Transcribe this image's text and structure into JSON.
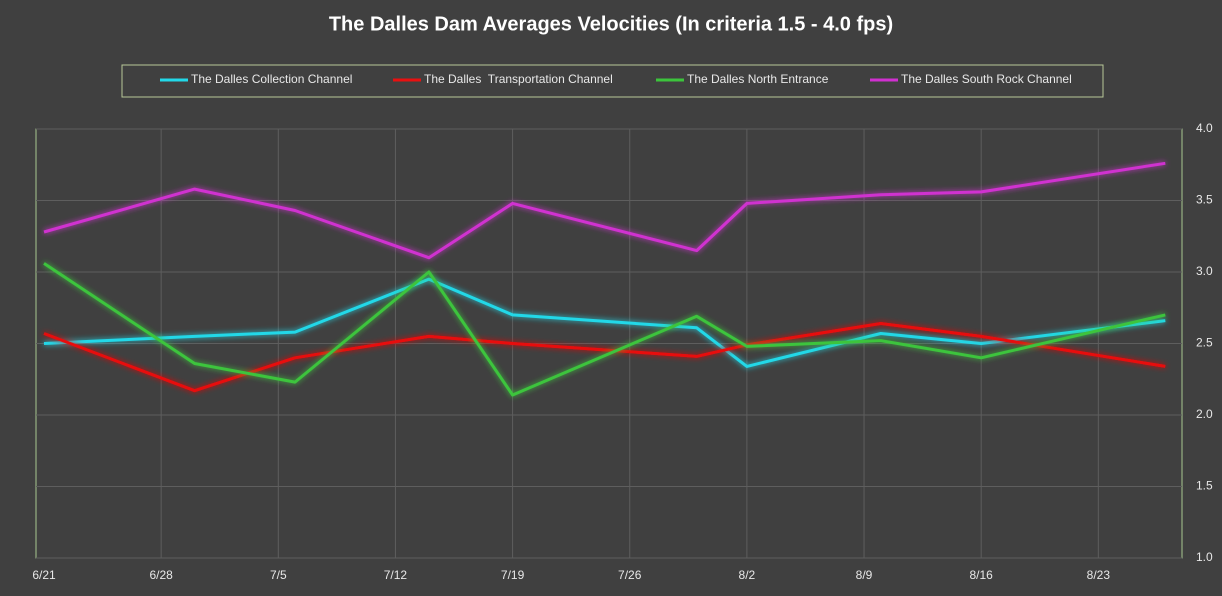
{
  "chart_data": {
    "type": "line",
    "title": "The Dalles Dam Averages Velocities (In criteria 1.5 - 4.0 fps)",
    "x": [
      "6/21",
      "6/30",
      "7/6",
      "7/14",
      "7/19",
      "7/30",
      "8/2",
      "8/10",
      "8/16",
      "8/27"
    ],
    "xlim": [
      "6/21",
      "8/28"
    ],
    "xticks": [
      "6/21",
      "6/28",
      "7/5",
      "7/12",
      "7/19",
      "7/26",
      "8/2",
      "8/9",
      "8/16",
      "8/23"
    ],
    "ylim": [
      1.0,
      4.0
    ],
    "yticks": [
      {
        "value": 1.0,
        "label": "1.0"
      },
      {
        "value": 1.5,
        "label": "1.5"
      },
      {
        "value": 2.0,
        "label": "2.0"
      },
      {
        "value": 2.5,
        "label": "2.5"
      },
      {
        "value": 3.0,
        "label": "3.0"
      },
      {
        "value": 3.5,
        "label": "3.5"
      },
      {
        "value": 4.0,
        "label": "4.0"
      }
    ],
    "grid": true,
    "legend": "top",
    "series": [
      {
        "name": "The Dalles Collection Channel",
        "color": "#22d8e8",
        "values": [
          2.5,
          2.55,
          2.58,
          2.95,
          2.7,
          2.61,
          2.34,
          2.57,
          2.5,
          2.66
        ]
      },
      {
        "name": "The Dalles  Transportation Channel",
        "color": "#e81010",
        "values": [
          2.57,
          2.17,
          2.4,
          2.55,
          2.5,
          2.41,
          2.49,
          2.64,
          2.55,
          2.34
        ]
      },
      {
        "name": "The Dalles North Entrance",
        "color": "#3cc43c",
        "values": [
          3.06,
          2.36,
          2.23,
          3.0,
          2.14,
          2.69,
          2.48,
          2.52,
          2.4,
          2.7
        ]
      },
      {
        "name": "The Dalles South Rock Channel",
        "color": "#d030d0",
        "values": [
          3.28,
          3.58,
          3.43,
          3.1,
          3.48,
          3.15,
          3.48,
          3.54,
          3.56,
          3.76
        ]
      }
    ]
  }
}
